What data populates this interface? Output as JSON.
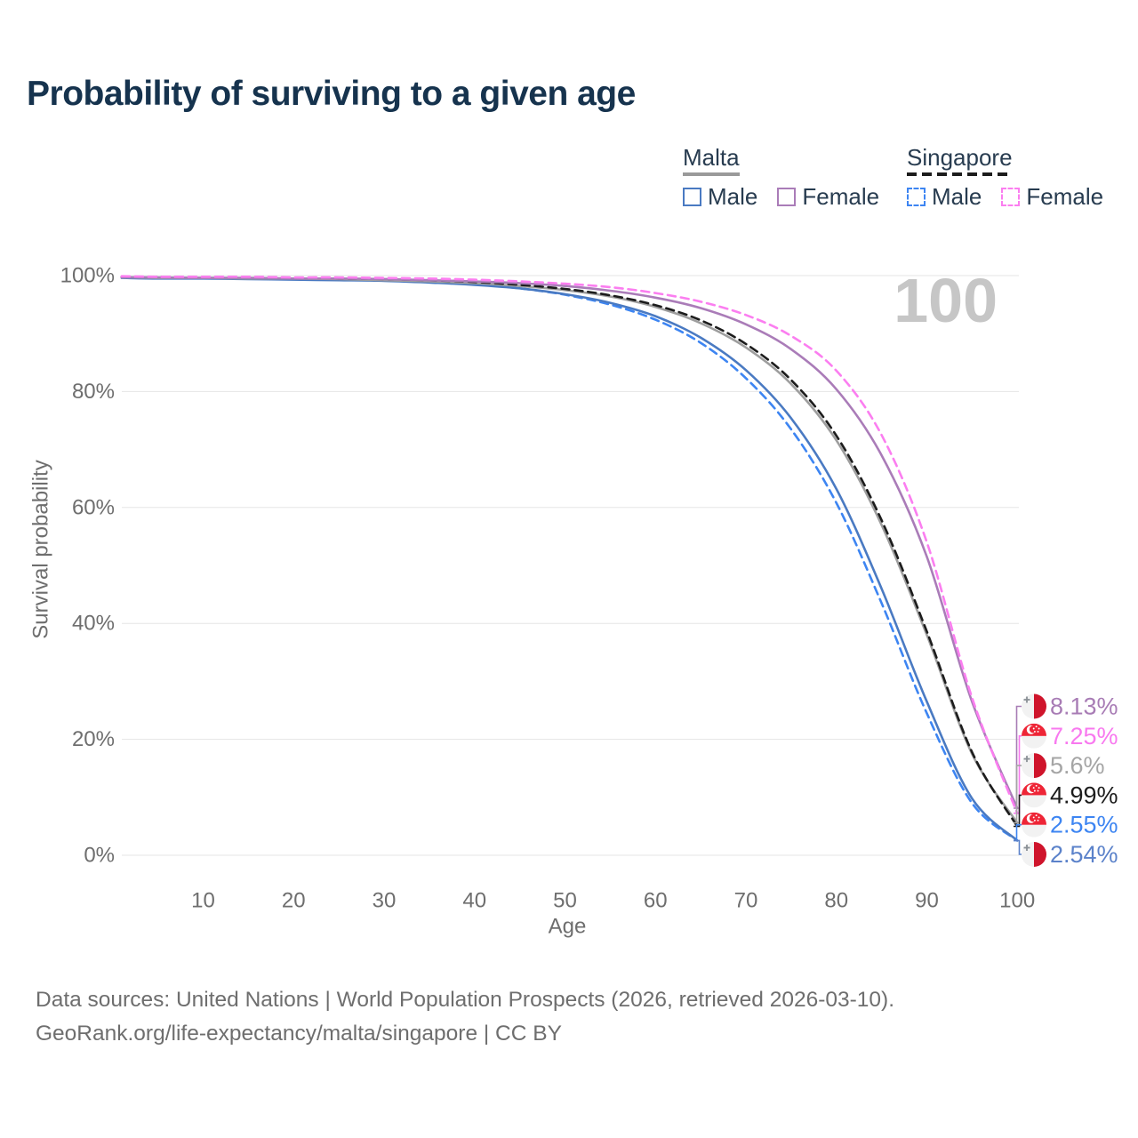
{
  "header": {
    "title": "Probability of surviving to a given age"
  },
  "legend": {
    "groups": [
      {
        "label": "Malta",
        "style": "solid",
        "items": [
          {
            "label": "Male",
            "series": "Malta Male"
          },
          {
            "label": "Female",
            "series": "Malta Female"
          }
        ]
      },
      {
        "label": "Singapore",
        "style": "dashed",
        "items": [
          {
            "label": "Male",
            "series": "Singapore Male"
          },
          {
            "label": "Female",
            "series": "Singapore Female"
          }
        ]
      }
    ]
  },
  "watermark": "100",
  "footer": {
    "line1": "Data sources: United Nations | World Population Prospects (2026, retrieved 2026-03-10).",
    "line2": "GeoRank.org/life-expectancy/malta/singapore | CC BY"
  },
  "colors": {
    "title": "#16334e",
    "grid": "#e5e5e5",
    "muted_text": "#6e6e6e",
    "watermark": "#c6c6c6",
    "malta_underline": "#9a9a9a",
    "singapore_underline": "#1c1c1c",
    "malta_flag_red": "#cf142b",
    "singapore_flag_red": "#ee2536"
  },
  "chart_data": {
    "type": "line",
    "title": "Probability of surviving to a given age",
    "xlabel": "Age",
    "ylabel": "Survival probability",
    "xlim": [
      0,
      100
    ],
    "ylim": [
      0,
      100
    ],
    "grid": true,
    "legend_position": "top-right",
    "x_ticks": [
      10,
      20,
      30,
      40,
      50,
      60,
      70,
      80,
      90,
      100
    ],
    "y_ticks": [
      0,
      20,
      40,
      60,
      80,
      100
    ],
    "y_tick_labels": [
      "0%",
      "20%",
      "40%",
      "60%",
      "80%",
      "100%"
    ],
    "x": [
      1,
      5,
      10,
      15,
      20,
      25,
      30,
      35,
      40,
      45,
      50,
      55,
      60,
      65,
      70,
      75,
      80,
      85,
      90,
      95,
      100
    ],
    "series": [
      {
        "name": "Singapore Male",
        "country": "Singapore",
        "sex": "Male",
        "color": "#3d85f2",
        "dash": true,
        "values": [
          99.8,
          99.7,
          99.7,
          99.6,
          99.5,
          99.4,
          99.2,
          98.9,
          98.5,
          97.8,
          96.7,
          95.0,
          92.4,
          88.4,
          82.3,
          73.5,
          60.8,
          43.5,
          24.5,
          9.0,
          2.55
        ]
      },
      {
        "name": "Malta Male",
        "country": "Malta",
        "sex": "Male",
        "color": "#4a7ac2",
        "dash": false,
        "values": [
          99.6,
          99.5,
          99.5,
          99.4,
          99.3,
          99.2,
          99.1,
          98.8,
          98.4,
          97.8,
          96.8,
          95.3,
          93.0,
          89.3,
          83.7,
          75.4,
          63.2,
          46.0,
          26.5,
          9.8,
          2.54
        ]
      },
      {
        "name": "Malta",
        "country": "Malta",
        "sex": "Both",
        "color": "#9e9e9e",
        "dash": false,
        "values": [
          99.7,
          99.6,
          99.6,
          99.5,
          99.5,
          99.4,
          99.2,
          99.0,
          98.7,
          98.2,
          97.5,
          96.4,
          94.6,
          91.8,
          87.6,
          81.3,
          71.6,
          57.0,
          38.0,
          17.5,
          5.6
        ]
      },
      {
        "name": "Singapore",
        "country": "Singapore",
        "sex": "Both",
        "color": "#1c1c1c",
        "dash": true,
        "values": [
          99.8,
          99.8,
          99.7,
          99.7,
          99.6,
          99.5,
          99.4,
          99.2,
          98.9,
          98.4,
          97.7,
          96.6,
          94.9,
          92.3,
          88.2,
          82.0,
          72.4,
          57.8,
          38.6,
          17.8,
          4.99
        ]
      },
      {
        "name": "Malta Female",
        "country": "Malta",
        "sex": "Female",
        "color": "#aa7cb8",
        "dash": false,
        "values": [
          99.7,
          99.7,
          99.6,
          99.6,
          99.5,
          99.5,
          99.4,
          99.2,
          99.0,
          98.7,
          98.2,
          97.4,
          96.2,
          94.4,
          91.6,
          87.3,
          80.4,
          69.0,
          51.5,
          26.5,
          8.13
        ]
      },
      {
        "name": "Singapore Female",
        "country": "Singapore",
        "sex": "Female",
        "color": "#fb7ef0",
        "dash": true,
        "values": [
          99.9,
          99.8,
          99.8,
          99.8,
          99.7,
          99.7,
          99.6,
          99.5,
          99.3,
          99.0,
          98.6,
          98.0,
          97.0,
          95.5,
          93.2,
          89.6,
          83.6,
          72.5,
          54.0,
          27.2,
          7.25
        ]
      }
    ],
    "end_labels": [
      {
        "series": "Malta Female",
        "text": "8.13%",
        "flag": "malta",
        "color": "#a87cb5"
      },
      {
        "series": "Singapore Female",
        "text": "7.25%",
        "flag": "singapore",
        "color": "#f879ef"
      },
      {
        "series": "Malta",
        "text": "5.6%",
        "flag": "malta",
        "color": "#a5a5a5"
      },
      {
        "series": "Singapore",
        "text": "4.99%",
        "flag": "singapore",
        "color": "#1c1c1c"
      },
      {
        "series": "Singapore Male",
        "text": "2.55%",
        "flag": "singapore",
        "color": "#3d85f2"
      },
      {
        "series": "Malta Male",
        "text": "2.54%",
        "flag": "malta",
        "color": "#5b82ca"
      }
    ]
  }
}
